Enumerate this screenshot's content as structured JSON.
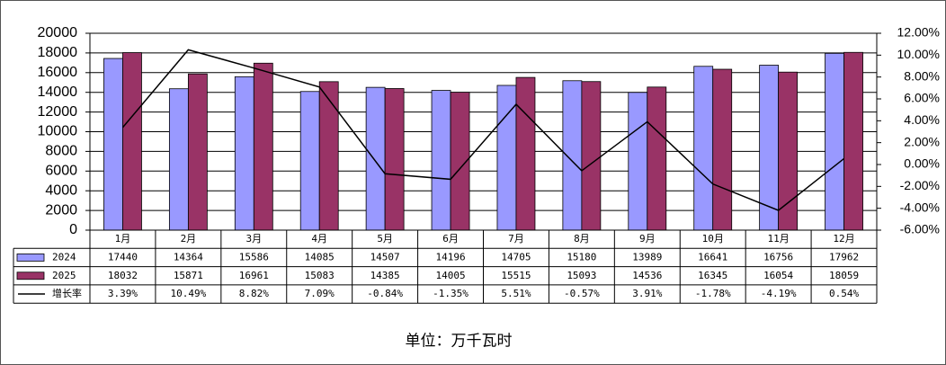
{
  "chart_data": {
    "type": "bar",
    "categories": [
      "1月",
      "2月",
      "3月",
      "4月",
      "5月",
      "6月",
      "7月",
      "8月",
      "9月",
      "10月",
      "11月",
      "12月"
    ],
    "series": [
      {
        "name": "2024",
        "color": "#9999ff",
        "values": [
          17440,
          14364,
          15586,
          14085,
          14507,
          14196,
          14705,
          15180,
          13989,
          16641,
          16756,
          17962
        ]
      },
      {
        "name": "2025",
        "color": "#993366",
        "values": [
          18032,
          15871,
          16961,
          15083,
          14385,
          14005,
          15515,
          15093,
          14536,
          16345,
          16054,
          18059
        ]
      },
      {
        "name": "增长率",
        "color": "#000000",
        "type": "line",
        "axis": "y2",
        "values": [
          3.39,
          10.49,
          8.82,
          7.09,
          -0.84,
          -1.35,
          5.51,
          -0.57,
          3.91,
          -1.78,
          -4.19,
          0.54
        ],
        "value_labels": [
          "3.39%",
          "10.49%",
          "8.82%",
          "7.09%",
          "-0.84%",
          "-1.35%",
          "5.51%",
          "-0.57%",
          "3.91%",
          "-1.78%",
          "-4.19%",
          "0.54%"
        ]
      }
    ],
    "ylim": [
      0,
      20000
    ],
    "yticks": [
      0,
      2000,
      4000,
      6000,
      8000,
      10000,
      12000,
      14000,
      16000,
      18000,
      20000
    ],
    "y2lim": [
      -6,
      12
    ],
    "y2ticks": [
      {
        "value": -6,
        "label": "-6.00%"
      },
      {
        "value": -4,
        "label": "-4.00%"
      },
      {
        "value": -2,
        "label": "-2.00%"
      },
      {
        "value": 0,
        "label": "0.00%"
      },
      {
        "value": 2,
        "label": "2.00%"
      },
      {
        "value": 4,
        "label": "4.00%"
      },
      {
        "value": 6,
        "label": "6.00%"
      },
      {
        "value": 8,
        "label": "8.00%"
      },
      {
        "value": 10,
        "label": "10.00%"
      },
      {
        "value": 12,
        "label": "12.00%"
      }
    ],
    "grid": true,
    "footnote": "单位：万千瓦时"
  }
}
